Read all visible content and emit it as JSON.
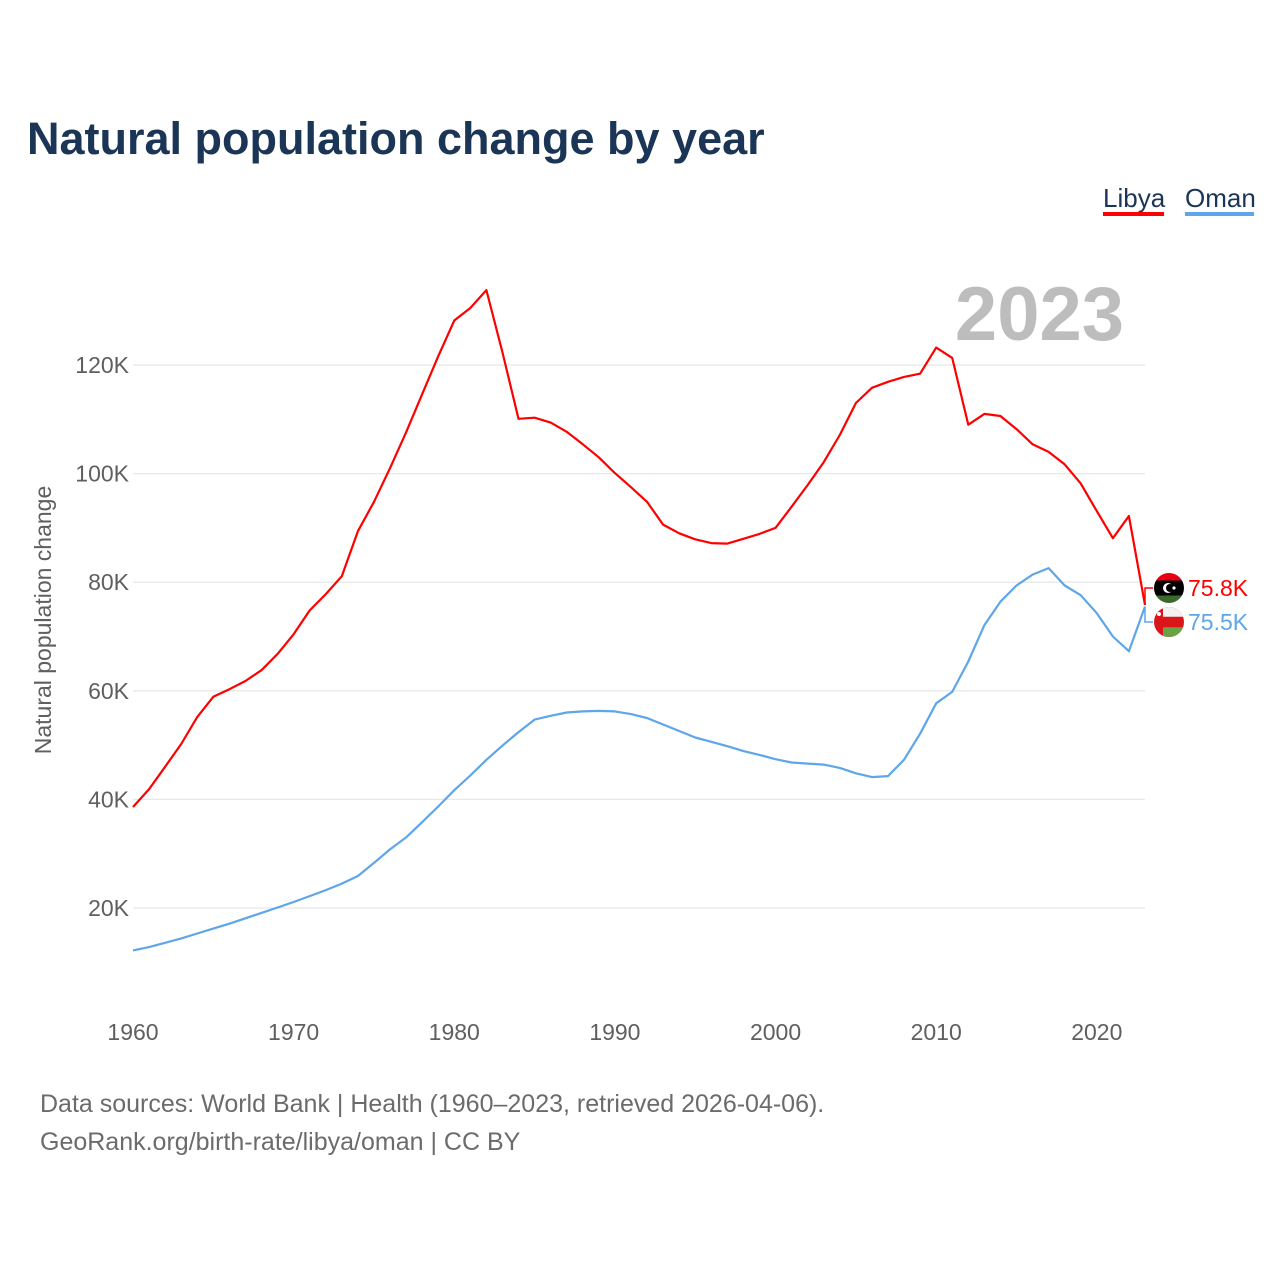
{
  "title": "Natural population change by year",
  "year_badge": "2023",
  "source_line1": "Data sources: World Bank | Health (1960–2023, retrieved 2026-04-06).",
  "source_line2": "GeoRank.org/birth-rate/libya/oman | CC BY",
  "chart_data": {
    "type": "line",
    "title": "Natural population change by year",
    "xlabel": "",
    "ylabel": "Natural population change",
    "xlim": [
      1960,
      2023
    ],
    "ylim": [
      0,
      140000
    ],
    "x_ticks": [
      1960,
      1970,
      1980,
      1990,
      2000,
      2010,
      2020
    ],
    "x_tick_labels": [
      "1960",
      "1970",
      "1980",
      "1990",
      "2000",
      "2010",
      "2020"
    ],
    "y_ticks": [
      20000,
      40000,
      60000,
      80000,
      100000,
      120000
    ],
    "y_tick_labels": [
      "20K",
      "40K",
      "60K",
      "80K",
      "100K",
      "120K"
    ],
    "grid": true,
    "legend_position": "top-right",
    "x": [
      1960,
      1961,
      1962,
      1963,
      1964,
      1965,
      1966,
      1967,
      1968,
      1969,
      1970,
      1971,
      1972,
      1973,
      1974,
      1975,
      1976,
      1977,
      1978,
      1979,
      1980,
      1981,
      1982,
      1983,
      1984,
      1985,
      1986,
      1987,
      1988,
      1989,
      1990,
      1991,
      1992,
      1993,
      1994,
      1995,
      1996,
      1997,
      1998,
      1999,
      2000,
      2001,
      2002,
      2003,
      2004,
      2005,
      2006,
      2007,
      2008,
      2009,
      2010,
      2011,
      2012,
      2013,
      2014,
      2015,
      2016,
      2017,
      2018,
      2019,
      2020,
      2021,
      2022,
      2023
    ],
    "series": [
      {
        "name": "Libya",
        "color": "#ff0000",
        "end_label": "75.8K",
        "flag": "libya-flag",
        "values": [
          38600,
          41900,
          46000,
          50200,
          55200,
          58900,
          60300,
          61800,
          63800,
          66800,
          70400,
          74800,
          77800,
          81100,
          89400,
          94800,
          101000,
          107600,
          114600,
          121600,
          128200,
          130500,
          133800,
          122300,
          110100,
          110300,
          109400,
          107700,
          105400,
          103000,
          100100,
          97500,
          94800,
          90600,
          89000,
          87900,
          87200,
          87100,
          88000,
          88900,
          90000,
          93900,
          97900,
          102100,
          107100,
          113000,
          115800,
          116900,
          117800,
          118400,
          123200,
          121300,
          109000,
          111000,
          110600,
          108200,
          105400,
          104000,
          101700,
          98200,
          93100,
          88100,
          92200,
          75800
        ]
      },
      {
        "name": "Oman",
        "color": "#5ea5ea",
        "end_label": "75.5K",
        "flag": "oman-flag",
        "values": [
          12200,
          12800,
          13600,
          14400,
          15300,
          16200,
          17100,
          18100,
          19100,
          20100,
          21100,
          22200,
          23300,
          24500,
          25900,
          28300,
          30800,
          33000,
          35800,
          38700,
          41700,
          44400,
          47300,
          49900,
          52400,
          54700,
          55400,
          56000,
          56200,
          56300,
          56200,
          55700,
          55000,
          53800,
          52600,
          51400,
          50600,
          49800,
          48900,
          48200,
          47400,
          46800,
          46600,
          46400,
          45800,
          44800,
          44100,
          44300,
          47300,
          52100,
          57700,
          59800,
          65400,
          72100,
          76400,
          79400,
          81400,
          82600,
          79400,
          77600,
          74300,
          70000,
          67300,
          75500
        ]
      }
    ]
  }
}
